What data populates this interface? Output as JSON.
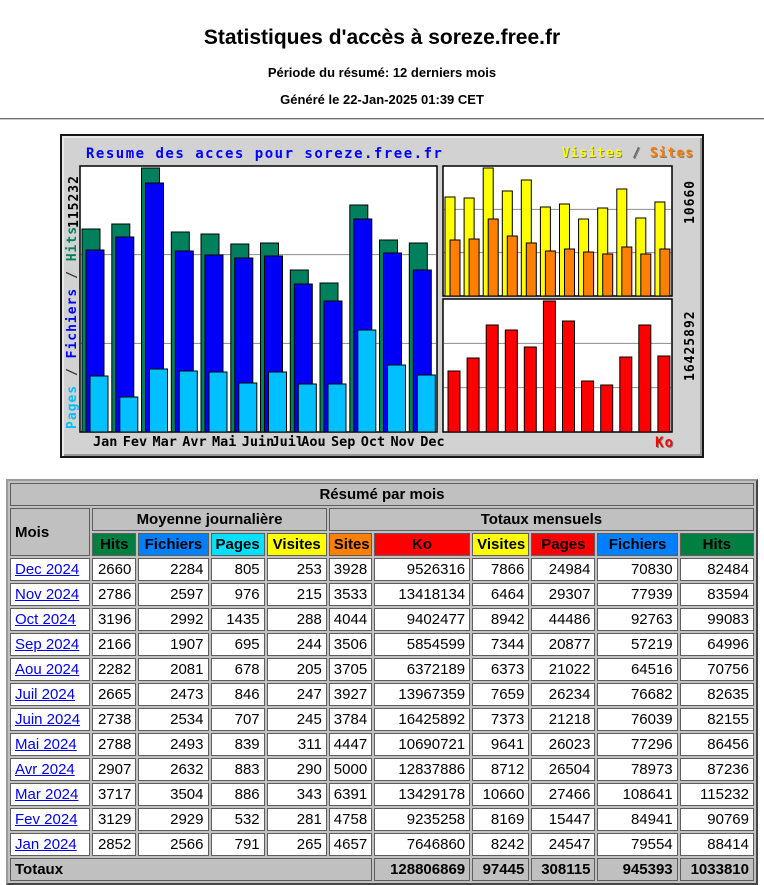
{
  "header": {
    "title": "Statistiques d'accès à soreze.free.fr",
    "period_line": "Période du résumé: 12 derniers mois",
    "generated_line": "Généré le 22-Jan-2025 01:39 CET"
  },
  "chart_data": {
    "type": "bar",
    "title": "Resume des acces pour soreze.free.fr",
    "title_color": "#0000ff",
    "categories": [
      "Jan",
      "Fev",
      "Mar",
      "Avr",
      "Mai",
      "Juin",
      "Juil",
      "Aou",
      "Sep",
      "Oct",
      "Nov",
      "Dec"
    ],
    "series": {
      "hits": {
        "name": "Hits",
        "color": "#00805c",
        "values": [
          88414,
          90769,
          115232,
          87236,
          86456,
          82155,
          82635,
          70756,
          64996,
          99083,
          83594,
          82484
        ]
      },
      "fichiers": {
        "name": "Fichiers",
        "color": "#0000fa",
        "values": [
          79554,
          84941,
          108641,
          78973,
          77296,
          76039,
          76682,
          64516,
          57219,
          92763,
          77939,
          70830
        ]
      },
      "pages": {
        "name": "Pages",
        "color": "#00c0ff",
        "values": [
          24547,
          15447,
          27466,
          26504,
          26023,
          21218,
          26234,
          21022,
          20877,
          44486,
          29307,
          24984
        ]
      },
      "visites": {
        "name": "Visites",
        "color": "#ffff00",
        "values": [
          8242,
          8169,
          10660,
          8712,
          9641,
          7373,
          7659,
          6373,
          7344,
          8942,
          6464,
          7866
        ]
      },
      "sites": {
        "name": "Sites",
        "color": "#ff8000",
        "values": [
          4657,
          4758,
          6391,
          5000,
          4447,
          3784,
          3927,
          3705,
          3506,
          4044,
          3533,
          3928
        ]
      },
      "ko": {
        "name": "Ko",
        "color": "#ff0000",
        "values": [
          7646860,
          9235258,
          13429178,
          12837886,
          10690721,
          16425892,
          13967359,
          6372189,
          5854599,
          9402477,
          13418134,
          9526316
        ]
      }
    },
    "left_axis_max_label": "115232",
    "left_series_label": [
      {
        "text": "Pages",
        "color": "#00c0ff"
      },
      {
        "text": " / ",
        "color": "#303030"
      },
      {
        "text": "Fichiers",
        "color": "#0000fa"
      },
      {
        "text": " / ",
        "color": "#303030"
      },
      {
        "text": "Hits",
        "color": "#00805c"
      }
    ],
    "legend_top_right": [
      {
        "text": "Visites",
        "color": "#ffff00"
      },
      {
        "text": " / ",
        "color": "#606060"
      },
      {
        "text": "Sites",
        "color": "#ff8000"
      }
    ],
    "right_axis_top_label": "10660",
    "right_axis_bottom_label": "16425892",
    "bottom_right_label": "Ko",
    "bottom_right_label_color": "#ff0000",
    "grid": true,
    "legend_position": "top-right"
  },
  "table": {
    "caption": "Résumé par mois",
    "col_mois": "Mois",
    "group_daily": "Moyenne journalière",
    "group_monthly": "Totaux mensuels",
    "daily_headers": [
      {
        "label": "Hits",
        "color": "#008040"
      },
      {
        "label": "Fichiers",
        "color": "#0080ff"
      },
      {
        "label": "Pages",
        "color": "#00e0ff"
      },
      {
        "label": "Visites",
        "color": "#ffff00"
      }
    ],
    "monthly_headers": [
      {
        "label": "Sites",
        "color": "#ff8000"
      },
      {
        "label": "Ko",
        "color": "#ff0000"
      },
      {
        "label": "Visites",
        "color": "#ffff00"
      },
      {
        "label": "Pages",
        "color": "#ff0000"
      },
      {
        "label": "Fichiers",
        "color": "#0080ff"
      },
      {
        "label": "Hits",
        "color": "#008040"
      }
    ],
    "rows": [
      {
        "month": "Dec 2024",
        "daily": [
          2660,
          2284,
          805,
          253
        ],
        "monthly": [
          3928,
          9526316,
          7866,
          24984,
          70830,
          82484
        ]
      },
      {
        "month": "Nov 2024",
        "daily": [
          2786,
          2597,
          976,
          215
        ],
        "monthly": [
          3533,
          13418134,
          6464,
          29307,
          77939,
          83594
        ]
      },
      {
        "month": "Oct 2024",
        "daily": [
          3196,
          2992,
          1435,
          288
        ],
        "monthly": [
          4044,
          9402477,
          8942,
          44486,
          92763,
          99083
        ]
      },
      {
        "month": "Sep 2024",
        "daily": [
          2166,
          1907,
          695,
          244
        ],
        "monthly": [
          3506,
          5854599,
          7344,
          20877,
          57219,
          64996
        ]
      },
      {
        "month": "Aou 2024",
        "daily": [
          2282,
          2081,
          678,
          205
        ],
        "monthly": [
          3705,
          6372189,
          6373,
          21022,
          64516,
          70756
        ]
      },
      {
        "month": "Juil 2024",
        "daily": [
          2665,
          2473,
          846,
          247
        ],
        "monthly": [
          3927,
          13967359,
          7659,
          26234,
          76682,
          82635
        ]
      },
      {
        "month": "Juin 2024",
        "daily": [
          2738,
          2534,
          707,
          245
        ],
        "monthly": [
          3784,
          16425892,
          7373,
          21218,
          76039,
          82155
        ]
      },
      {
        "month": "Mai 2024",
        "daily": [
          2788,
          2493,
          839,
          311
        ],
        "monthly": [
          4447,
          10690721,
          9641,
          26023,
          77296,
          86456
        ]
      },
      {
        "month": "Avr 2024",
        "daily": [
          2907,
          2632,
          883,
          290
        ],
        "monthly": [
          5000,
          12837886,
          8712,
          26504,
          78973,
          87236
        ]
      },
      {
        "month": "Mar 2024",
        "daily": [
          3717,
          3504,
          886,
          343
        ],
        "monthly": [
          6391,
          13429178,
          10660,
          27466,
          108641,
          115232
        ]
      },
      {
        "month": "Fev 2024",
        "daily": [
          3129,
          2929,
          532,
          281
        ],
        "monthly": [
          4758,
          9235258,
          8169,
          15447,
          84941,
          90769
        ]
      },
      {
        "month": "Jan 2024",
        "daily": [
          2852,
          2566,
          791,
          265
        ],
        "monthly": [
          4657,
          7646860,
          8242,
          24547,
          79554,
          88414
        ]
      }
    ],
    "totals": {
      "label": "Totaux",
      "values": [
        128806869,
        97445,
        308115,
        945393,
        1033810
      ]
    }
  }
}
